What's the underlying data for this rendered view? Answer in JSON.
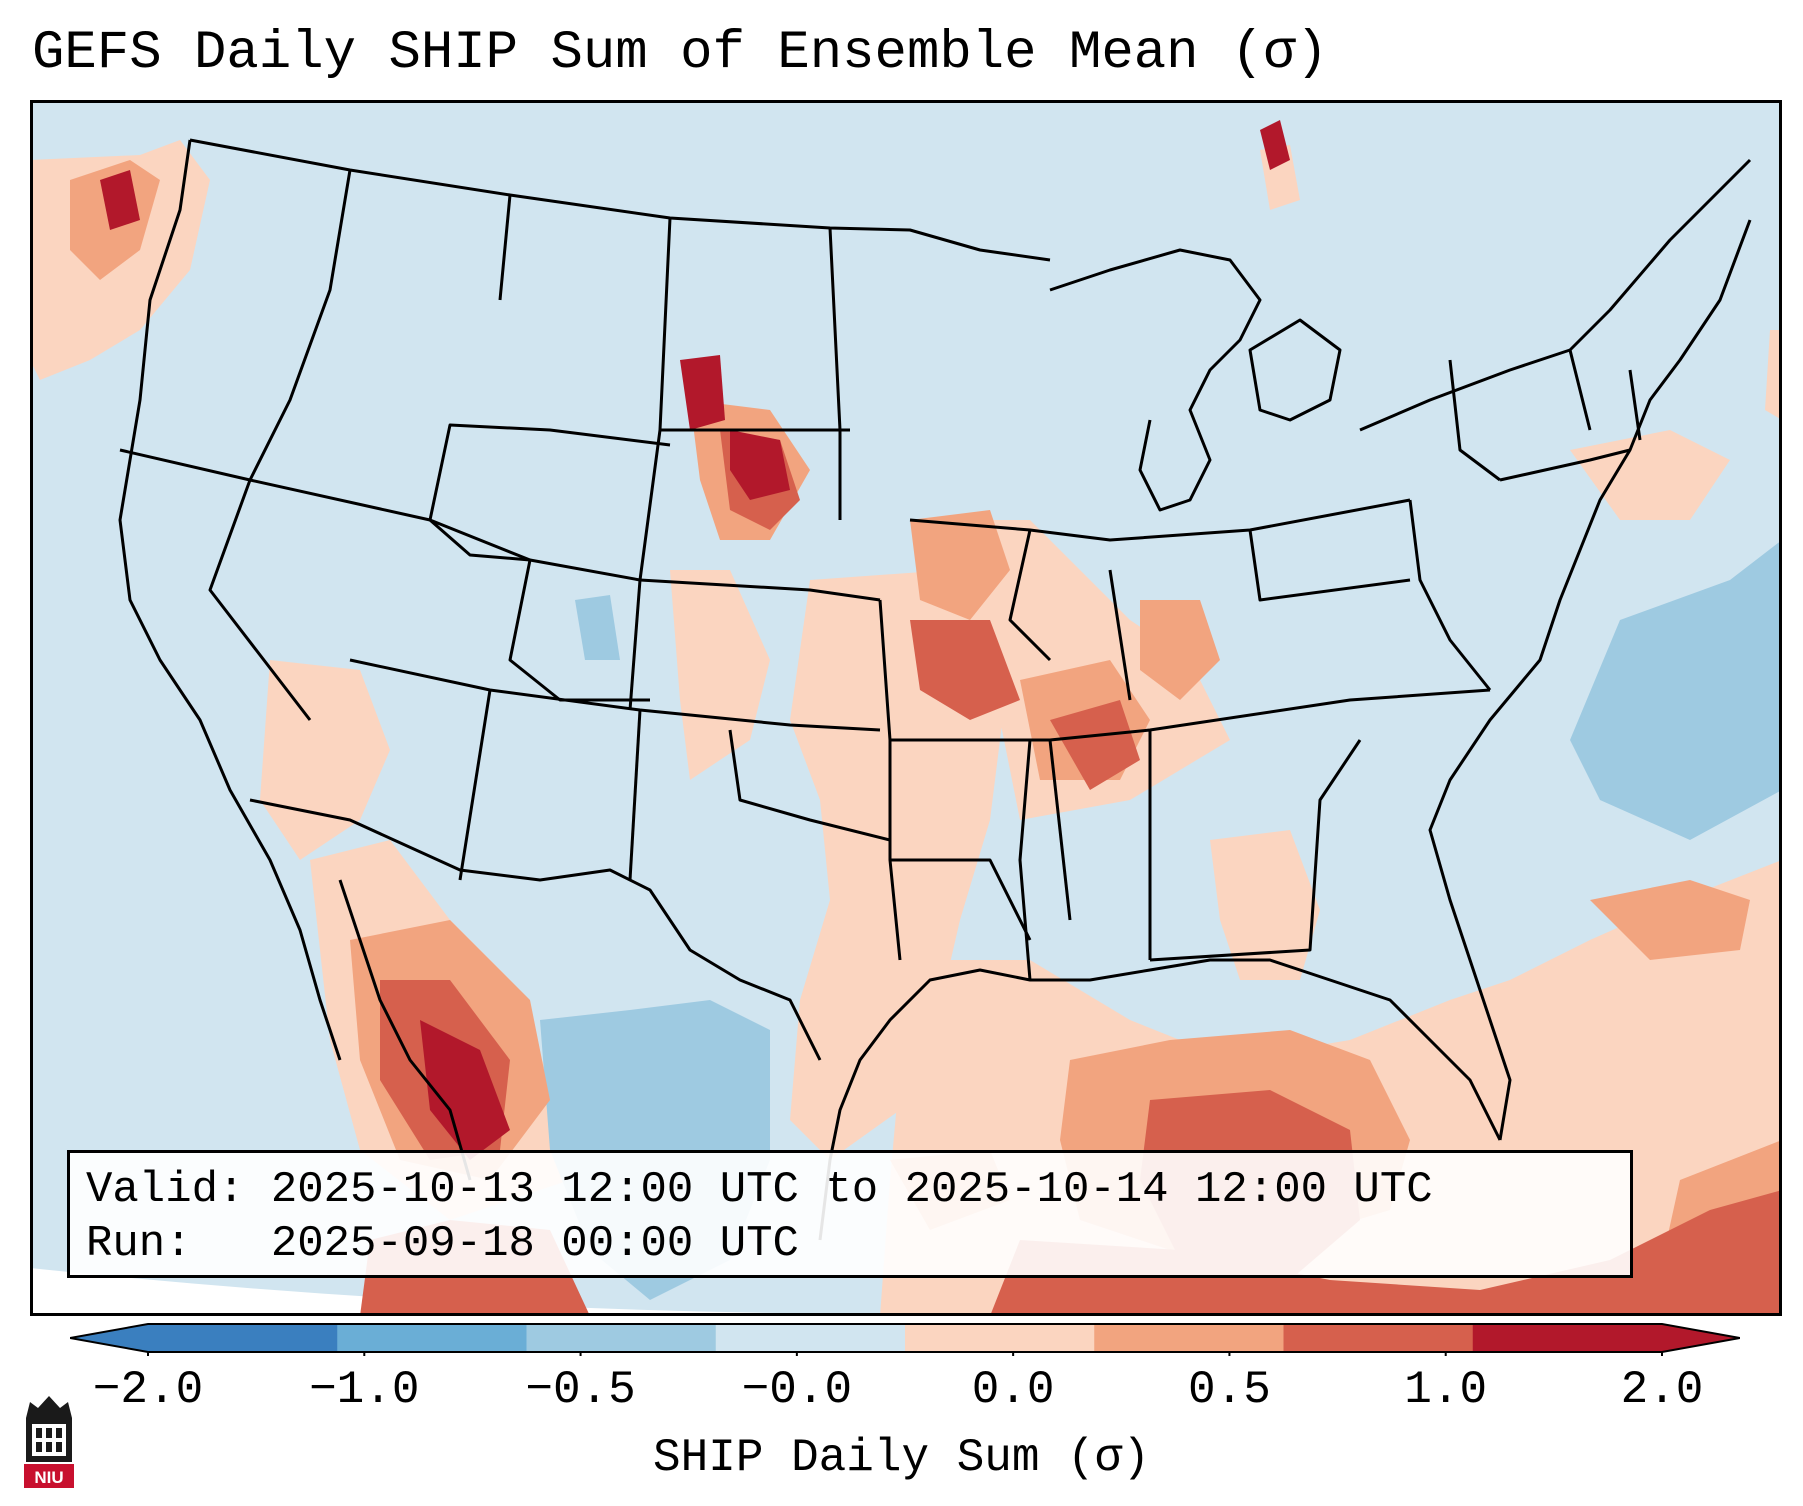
{
  "title": "GEFS Daily SHIP Sum of Ensemble Mean (σ)",
  "info": {
    "valid_label": "Valid:",
    "valid_value": "2025-10-13 12:00 UTC to 2025-10-14 12:00 UTC",
    "run_label": "Run:",
    "run_value": "2025-09-18 00:00 UTC"
  },
  "colorbar": {
    "label": "SHIP Daily Sum (σ)",
    "ticks": [
      "−2.0",
      "−1.0",
      "−0.5",
      "−0.0",
      "0.0",
      "0.5",
      "1.0",
      "2.0"
    ],
    "colors": [
      "#3a7fbf",
      "#6aaed6",
      "#9ecae1",
      "#d1e5f0",
      "#fbd5c0",
      "#f2a47f",
      "#d6604d",
      "#b2182b"
    ]
  },
  "map": {
    "region": "Continental United States, northern Mexico, Gulf of Mexico",
    "background_color": "#d1e5f0"
  },
  "logo": {
    "text": "NIU",
    "name": "niu-logo"
  }
}
